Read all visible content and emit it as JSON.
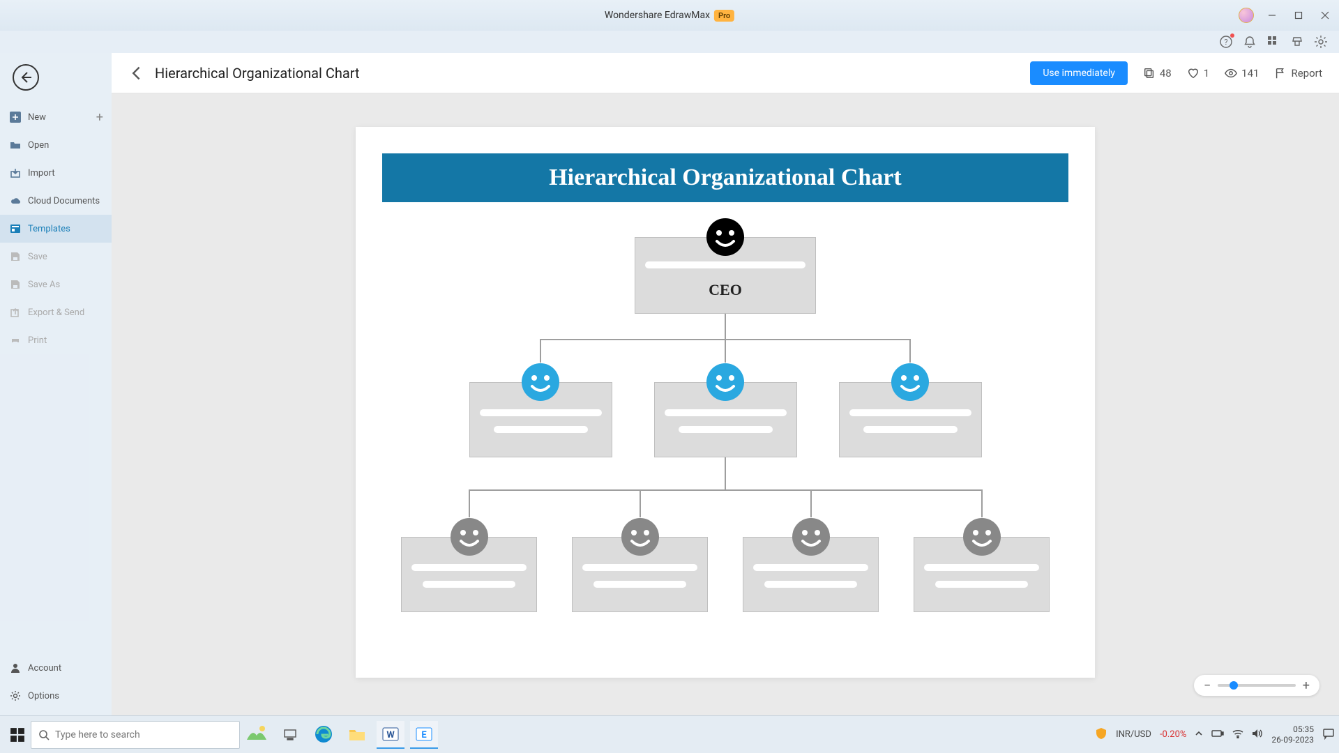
{
  "app": {
    "title": "Wondershare EdrawMax",
    "pro_badge": "Pro"
  },
  "sidebar": {
    "items": [
      {
        "label": "New",
        "icon": "plus-square",
        "hasAdd": true
      },
      {
        "label": "Open",
        "icon": "folder-open"
      },
      {
        "label": "Import",
        "icon": "import"
      },
      {
        "label": "Cloud Documents",
        "icon": "cloud"
      },
      {
        "label": "Templates",
        "icon": "templates",
        "active": true
      },
      {
        "label": "Save",
        "icon": "save",
        "disabled": true
      },
      {
        "label": "Save As",
        "icon": "save-as",
        "disabled": true
      },
      {
        "label": "Export & Send",
        "icon": "export",
        "disabled": true
      },
      {
        "label": "Print",
        "icon": "print",
        "disabled": true
      }
    ],
    "bottom": [
      {
        "label": "Account",
        "icon": "account"
      },
      {
        "label": "Options",
        "icon": "gear"
      }
    ]
  },
  "header": {
    "title": "Hierarchical Organizational Chart",
    "use_btn": "Use immediately",
    "copies": "48",
    "likes": "1",
    "views": "141",
    "report": "Report"
  },
  "orgchart": {
    "title": "Hierarchical Organizational Chart",
    "title_bg": "#1477a6",
    "title_color": "#ffffff",
    "node_bg": "#dcdcdc",
    "node_border": "#bfbfbf",
    "connector_color": "#9e9e9e",
    "ceo": {
      "label": "CEO",
      "face_color": "#000000"
    },
    "mid_face_color": "#2aa8e0",
    "leaf_face_color": "#888888",
    "mid_count": 3,
    "leaf_count": 4
  },
  "taskbar": {
    "search_placeholder": "Type here to search",
    "currency_pair": "INR/USD",
    "currency_change": "-0.20%",
    "time": "05:35",
    "date": "26-09-2023"
  }
}
